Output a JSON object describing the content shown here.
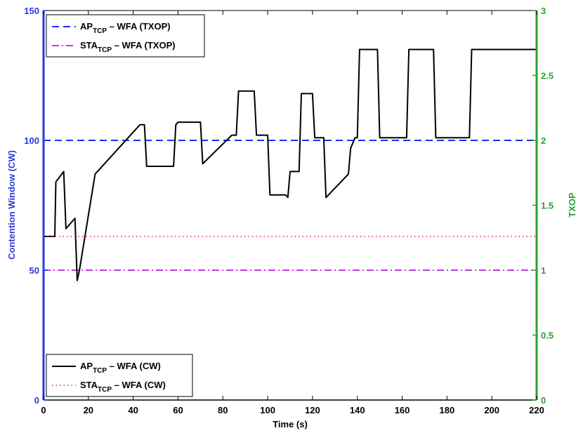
{
  "colors": {
    "left_axis": "#2a3bd6",
    "right_axis": "#2aa12a",
    "ap_txop": "#1a2ff2",
    "sta_txop": "#c43be0",
    "ap_cw": "#000000",
    "sta_cw": "#e3262a"
  },
  "chart_data": {
    "type": "line",
    "xlabel": "Time (s)",
    "ylabel_left": "Contention Window (CW)",
    "ylabel_right": "TXOP",
    "xlim": [
      0,
      220
    ],
    "ylim_left": [
      0,
      150
    ],
    "ylim_right": [
      0,
      3
    ],
    "x_ticks": [
      "0",
      "20",
      "40",
      "60",
      "80",
      "100",
      "120",
      "140",
      "160",
      "180",
      "200",
      "220"
    ],
    "y_left_ticks": [
      "0",
      "50",
      "100",
      "150"
    ],
    "y_right_ticks": [
      "0",
      "0.5",
      "1",
      "1.5",
      "2",
      "2.5",
      "3"
    ],
    "grid": false,
    "legends": [
      {
        "position": "top-left",
        "entries": [
          {
            "main": "AP",
            "sub": "TCP",
            "rest": " – WFA (TXOP)",
            "series": "ap_txop"
          },
          {
            "main": "STA",
            "sub": "TCP",
            "rest": " – WFA (TXOP)",
            "series": "sta_txop"
          }
        ]
      },
      {
        "position": "bottom-left",
        "entries": [
          {
            "main": "AP",
            "sub": "TCP",
            "rest": " – WFA (CW)",
            "series": "ap_cw"
          },
          {
            "main": "STA",
            "sub": "TCP",
            "rest": " – WFA (CW)",
            "series": "sta_cw"
          }
        ]
      }
    ],
    "series": [
      {
        "key": "ap_txop",
        "axis": "right",
        "style": "dashed",
        "x": [
          0,
          220
        ],
        "y": [
          2,
          2
        ]
      },
      {
        "key": "sta_txop",
        "axis": "right",
        "style": "dashdot",
        "x": [
          0,
          220
        ],
        "y": [
          1,
          1
        ]
      },
      {
        "key": "ap_cw",
        "axis": "left",
        "style": "solid",
        "x": [
          0,
          5,
          5.5,
          9,
          10,
          14,
          15,
          16,
          23,
          43,
          45,
          46,
          58,
          59,
          60,
          70,
          71,
          84,
          85,
          86,
          87,
          94,
          95,
          99,
          100,
          101,
          108,
          109,
          110,
          114,
          115,
          120,
          121,
          125,
          126,
          136,
          137,
          139,
          140,
          141,
          149,
          150,
          162,
          163,
          174,
          175,
          190,
          191,
          220
        ],
        "y": [
          63,
          63,
          84,
          88,
          66,
          70,
          46,
          50,
          87,
          106,
          106,
          90,
          90,
          106,
          107,
          107,
          91,
          102,
          102,
          102,
          119,
          119,
          102,
          102,
          102,
          79,
          79,
          78,
          88,
          88,
          118,
          118,
          101,
          101,
          78,
          87,
          97,
          101,
          101,
          135,
          135,
          101,
          101,
          135,
          135,
          101,
          101,
          135,
          135
        ]
      },
      {
        "key": "sta_cw",
        "axis": "left",
        "style": "dotted",
        "x": [
          0,
          220
        ],
        "y": [
          63,
          63
        ]
      }
    ]
  }
}
